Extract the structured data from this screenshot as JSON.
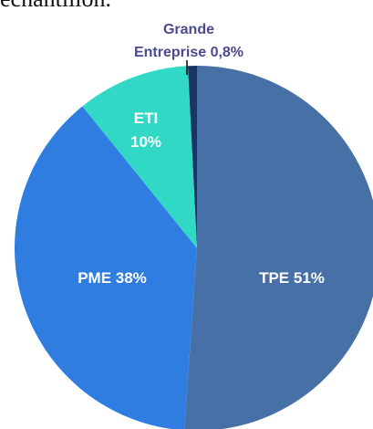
{
  "chart_data": {
    "type": "pie",
    "caption": "échantillon.",
    "categories": [
      "TPE",
      "PME",
      "ETI",
      "Grande Entreprise"
    ],
    "values": [
      51,
      38,
      10,
      0.8
    ],
    "value_labels": [
      "51%",
      "38%",
      "10%",
      "0,8%"
    ],
    "colors": [
      "#4670a6",
      "#2f7de0",
      "#31d8c6",
      "#1a3563"
    ],
    "label_color_outside": "#4b4a8c"
  }
}
